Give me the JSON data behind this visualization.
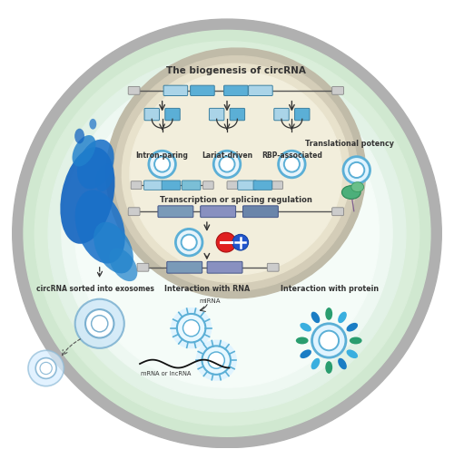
{
  "bg_color": "#ffffff",
  "title": "The biogenesis of circRNA",
  "label_intron": "Intron-paring",
  "label_lariat": "Lariat-driven",
  "label_rbp": "RBP-associated",
  "label_transcription": "Transcription or splicing regulation",
  "label_exosome": "circRNA sorted into exosomes",
  "label_rna": "Interaction with RNA",
  "label_protein": "Interaction with protein",
  "label_translation": "Translational potency",
  "label_mirna": "miRNA",
  "label_mrna": "mRNA or lncRNA",
  "blue_splash_color": "#1565c0",
  "circ_color": "#5bc8e8",
  "circ_inner": "#ffffff",
  "exon_blue": "#5bafd6",
  "exon_dark": "#7090b0",
  "intron_line": "#555555",
  "outer_gray": "#b0b0b0",
  "ring_green1": "#d0e8d0",
  "ring_green2": "#daeeda",
  "ring_green3": "#e2f2e6",
  "ring_inner": "#eef8f2",
  "cell_fill": "#f5fcf8",
  "nuc_outer": "#c0bba8",
  "nuc_mid": "#d4cdb8",
  "nuc_inner": "#e8e2cc",
  "nuc_fill": "#f2eedc"
}
